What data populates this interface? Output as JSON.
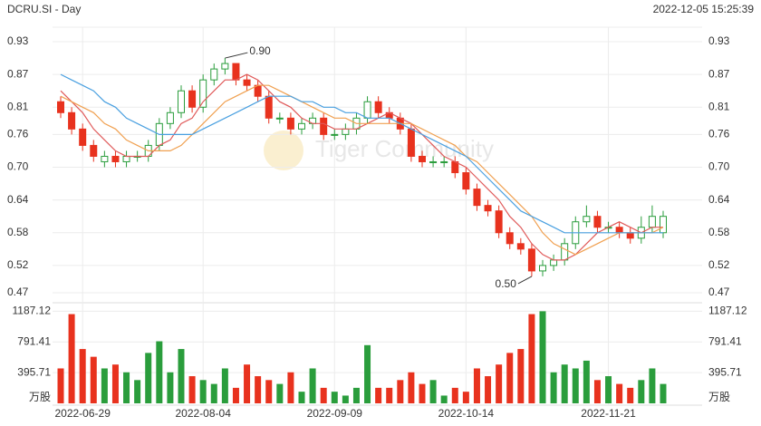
{
  "header": {
    "title": "DCRU.SI - Day",
    "timestamp": "2022-12-05 15:25:39"
  },
  "watermark": "Tiger Community",
  "chart_data": {
    "type": "candlestick",
    "categories": [
      null,
      null,
      "2022-06-29",
      null,
      null,
      null,
      null,
      null,
      null,
      null,
      null,
      null,
      null,
      "2022-08-04",
      null,
      null,
      null,
      null,
      null,
      null,
      null,
      null,
      null,
      null,
      null,
      "2022-09-09",
      null,
      null,
      null,
      null,
      null,
      null,
      null,
      null,
      null,
      null,
      null,
      "2022-10-14",
      null,
      null,
      null,
      null,
      null,
      null,
      null,
      null,
      null,
      null,
      null,
      null,
      "2022-11-21",
      null,
      null,
      null,
      null,
      null
    ],
    "open": [
      0.82,
      0.8,
      0.77,
      0.74,
      0.71,
      0.72,
      0.71,
      0.72,
      0.72,
      0.74,
      0.78,
      0.8,
      0.84,
      0.81,
      0.86,
      0.88,
      0.89,
      0.86,
      0.85,
      0.83,
      0.79,
      0.79,
      0.77,
      0.78,
      0.79,
      0.76,
      0.76,
      0.77,
      0.79,
      0.82,
      0.8,
      0.79,
      0.77,
      0.72,
      0.71,
      0.71,
      0.71,
      0.69,
      0.66,
      0.63,
      0.62,
      0.58,
      0.56,
      0.55,
      0.51,
      0.52,
      0.53,
      0.56,
      0.6,
      0.61,
      0.59,
      0.59,
      0.58,
      0.57,
      0.59,
      0.58
    ],
    "high": [
      0.83,
      0.81,
      0.78,
      0.75,
      0.73,
      0.73,
      0.73,
      0.73,
      0.75,
      0.79,
      0.81,
      0.85,
      0.85,
      0.87,
      0.89,
      0.9,
      0.89,
      0.87,
      0.86,
      0.84,
      0.8,
      0.8,
      0.79,
      0.8,
      0.8,
      0.77,
      0.78,
      0.8,
      0.83,
      0.83,
      0.81,
      0.8,
      0.78,
      0.73,
      0.72,
      0.72,
      0.72,
      0.7,
      0.67,
      0.64,
      0.63,
      0.59,
      0.57,
      0.56,
      0.53,
      0.54,
      0.57,
      0.61,
      0.63,
      0.62,
      0.6,
      0.6,
      0.59,
      0.61,
      0.63,
      0.62
    ],
    "low": [
      0.79,
      0.76,
      0.73,
      0.71,
      0.7,
      0.7,
      0.7,
      0.71,
      0.71,
      0.73,
      0.77,
      0.79,
      0.8,
      0.8,
      0.85,
      0.87,
      0.85,
      0.84,
      0.82,
      0.78,
      0.78,
      0.76,
      0.76,
      0.77,
      0.75,
      0.75,
      0.75,
      0.76,
      0.78,
      0.79,
      0.78,
      0.76,
      0.71,
      0.7,
      0.7,
      0.7,
      0.68,
      0.65,
      0.62,
      0.61,
      0.57,
      0.55,
      0.54,
      0.5,
      0.5,
      0.51,
      0.52,
      0.55,
      0.59,
      0.58,
      0.58,
      0.57,
      0.56,
      0.56,
      0.58,
      0.57
    ],
    "close": [
      0.8,
      0.77,
      0.74,
      0.72,
      0.72,
      0.71,
      0.72,
      0.72,
      0.74,
      0.78,
      0.8,
      0.84,
      0.81,
      0.86,
      0.88,
      0.89,
      0.86,
      0.85,
      0.83,
      0.79,
      0.79,
      0.77,
      0.78,
      0.79,
      0.76,
      0.76,
      0.77,
      0.79,
      0.82,
      0.8,
      0.79,
      0.77,
      0.72,
      0.71,
      0.71,
      0.71,
      0.69,
      0.66,
      0.63,
      0.62,
      0.58,
      0.56,
      0.55,
      0.51,
      0.52,
      0.53,
      0.56,
      0.6,
      0.61,
      0.59,
      0.59,
      0.58,
      0.57,
      0.59,
      0.61,
      0.61
    ],
    "up_color": "#2a9d3c",
    "down_color": "#e8321e",
    "series": [
      {
        "color": "#e05a5a",
        "values": [
          0.84,
          0.82,
          0.8,
          0.77,
          0.75,
          0.73,
          0.72,
          0.72,
          0.72,
          0.74,
          0.75,
          0.78,
          0.79,
          0.82,
          0.84,
          0.86,
          0.86,
          0.87,
          0.86,
          0.84,
          0.82,
          0.81,
          0.79,
          0.78,
          0.78,
          0.77,
          0.77,
          0.77,
          0.78,
          0.79,
          0.8,
          0.79,
          0.78,
          0.76,
          0.74,
          0.72,
          0.71,
          0.7,
          0.68,
          0.66,
          0.64,
          0.61,
          0.59,
          0.56,
          0.54,
          0.53,
          0.53,
          0.54,
          0.56,
          0.58,
          0.59,
          0.6,
          0.59,
          0.58,
          0.59,
          0.59
        ]
      },
      {
        "color": "#f0a050",
        "values": [
          0.83,
          0.82,
          0.81,
          0.8,
          0.78,
          0.77,
          0.75,
          0.74,
          0.73,
          0.73,
          0.73,
          0.74,
          0.76,
          0.78,
          0.8,
          0.82,
          0.83,
          0.84,
          0.85,
          0.85,
          0.84,
          0.83,
          0.82,
          0.81,
          0.8,
          0.79,
          0.79,
          0.78,
          0.78,
          0.78,
          0.78,
          0.78,
          0.78,
          0.77,
          0.76,
          0.75,
          0.74,
          0.72,
          0.71,
          0.69,
          0.67,
          0.65,
          0.63,
          0.61,
          0.58,
          0.56,
          0.55,
          0.54,
          0.55,
          0.56,
          0.57,
          0.58,
          0.58,
          0.58,
          0.58,
          0.59
        ]
      },
      {
        "color": "#4aa0e0",
        "values": [
          0.87,
          0.86,
          0.85,
          0.84,
          0.82,
          0.81,
          0.79,
          0.78,
          0.77,
          0.76,
          0.76,
          0.76,
          0.76,
          0.77,
          0.78,
          0.79,
          0.8,
          0.81,
          0.82,
          0.83,
          0.83,
          0.83,
          0.82,
          0.82,
          0.81,
          0.81,
          0.8,
          0.8,
          0.79,
          0.79,
          0.79,
          0.78,
          0.77,
          0.76,
          0.75,
          0.74,
          0.73,
          0.72,
          0.7,
          0.68,
          0.66,
          0.64,
          0.62,
          0.61,
          0.6,
          0.59,
          0.58,
          0.58,
          0.58,
          0.58,
          0.58,
          0.58,
          0.58,
          0.58,
          0.58,
          0.58
        ]
      }
    ],
    "ylim": [
      0.47,
      0.93
    ],
    "yticks": [
      0.93,
      0.87,
      0.81,
      0.76,
      {
        "value": 0.7,
        "label": "0.70"
      },
      0.64,
      0.58,
      0.52,
      0.47
    ],
    "annotations": [
      {
        "text": "0.90"
      },
      {
        "text": "0.50"
      }
    ],
    "volume": {
      "unit": "万股",
      "values": [
        450,
        1150,
        700,
        600,
        450,
        500,
        400,
        300,
        650,
        800,
        400,
        700,
        350,
        300,
        250,
        450,
        200,
        500,
        350,
        300,
        250,
        400,
        150,
        450,
        200,
        150,
        100,
        200,
        750,
        200,
        200,
        300,
        400,
        250,
        300,
        100,
        200,
        150,
        450,
        350,
        500,
        650,
        700,
        1150,
        1187,
        400,
        500,
        450,
        550,
        300,
        350,
        250,
        200,
        300,
        450,
        250
      ],
      "ylim": [
        0,
        1250
      ],
      "yticks": [
        1187.12,
        791.41,
        395.71
      ]
    }
  }
}
